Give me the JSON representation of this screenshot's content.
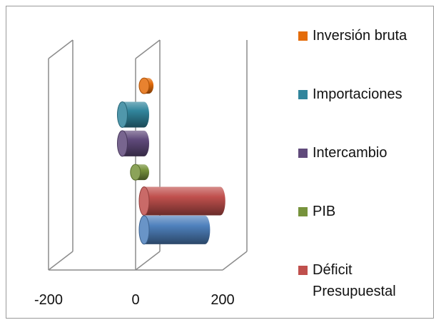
{
  "chart_data": {
    "type": "bar",
    "orientation": "horizontal",
    "style": "3d-cylinder",
    "categories": [
      "Inversión bruta",
      "Importaciones",
      "Intercambio",
      "PIB",
      "Déficit Presupuestal",
      ""
    ],
    "series": [
      {
        "name": "Inversión bruta",
        "color": "#E46C0A",
        "values": [
          10,
          null,
          null,
          null,
          null,
          null
        ]
      },
      {
        "name": "Importaciones",
        "color": "#31859C",
        "values": [
          null,
          -50,
          null,
          null,
          null,
          null
        ]
      },
      {
        "name": "Intercambio",
        "color": "#604A7B",
        "values": [
          null,
          null,
          -50,
          null,
          null,
          null
        ]
      },
      {
        "name": "PIB",
        "color": "#77933C",
        "values": [
          null,
          null,
          null,
          -20,
          null,
          null
        ]
      },
      {
        "name": "Déficit Presupuestal",
        "color": "#C0504D",
        "values": [
          null,
          null,
          null,
          null,
          175,
          null
        ]
      },
      {
        "name": "",
        "color": "#4F81BD",
        "values": [
          null,
          null,
          null,
          null,
          null,
          140
        ]
      }
    ],
    "xlim": [
      -200,
      200
    ],
    "xticks": [
      "-200",
      "0",
      "200"
    ],
    "legend_position": "right",
    "legend": [
      {
        "label_lines": [
          "Inversión bruta"
        ],
        "color": "#E46C0A"
      },
      {
        "label_lines": [
          "Importaciones"
        ],
        "color": "#31859C"
      },
      {
        "label_lines": [
          "Intercambio"
        ],
        "color": "#604A7B"
      },
      {
        "label_lines": [
          "PIB"
        ],
        "color": "#77933C"
      },
      {
        "label_lines": [
          "Déficit",
          "Presupuestal"
        ],
        "color": "#C0504D"
      }
    ]
  }
}
